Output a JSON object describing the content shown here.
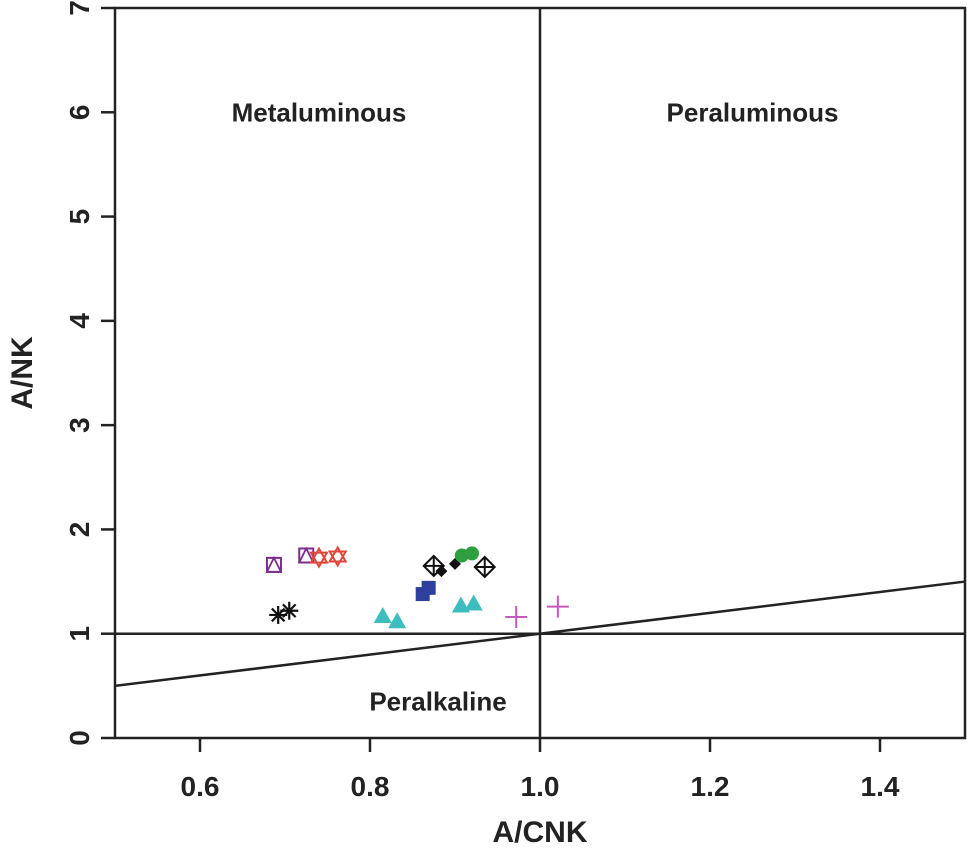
{
  "chart_data": {
    "type": "scatter",
    "title": "",
    "xlabel": "A/CNK",
    "ylabel": "A/NK",
    "xlim": [
      0.5,
      1.5
    ],
    "ylim": [
      0,
      7
    ],
    "x_ticks": [
      {
        "value": 0.6,
        "label": "0.6"
      },
      {
        "value": 0.8,
        "label": "0.8"
      },
      {
        "value": 1.0,
        "label": "1.0"
      },
      {
        "value": 1.2,
        "label": "1.2"
      },
      {
        "value": 1.4,
        "label": "1.4"
      }
    ],
    "y_ticks": [
      {
        "value": 0,
        "label": "0"
      },
      {
        "value": 1,
        "label": "1"
      },
      {
        "value": 2,
        "label": "2"
      },
      {
        "value": 3,
        "label": "3"
      },
      {
        "value": 4,
        "label": "4"
      },
      {
        "value": 5,
        "label": "5"
      },
      {
        "value": 6,
        "label": "6"
      },
      {
        "value": 7,
        "label": "7"
      }
    ],
    "grid": false,
    "legend": "none",
    "regions": [
      {
        "label": "Metaluminous",
        "x": 0.74,
        "y": 6.0
      },
      {
        "label": "Peraluminous",
        "x": 1.25,
        "y": 6.0
      },
      {
        "label": "Peralkaline",
        "x": 0.88,
        "y": 0.35
      }
    ],
    "reference_lines": [
      {
        "type": "vertical",
        "x": 1.0
      },
      {
        "type": "horizontal",
        "y": 1.0
      },
      {
        "type": "line",
        "points": [
          [
            0.5,
            0.5
          ],
          [
            1.5,
            1.5
          ]
        ]
      }
    ],
    "series": [
      {
        "marker": "square-triangle",
        "color": "#7b2d8e",
        "points": [
          [
            0.687,
            1.66
          ],
          [
            0.725,
            1.75
          ]
        ]
      },
      {
        "marker": "star-of-david",
        "color": "#e0453a",
        "points": [
          [
            0.74,
            1.73
          ],
          [
            0.762,
            1.74
          ]
        ]
      },
      {
        "marker": "asterisk",
        "color": "#111111",
        "points": [
          [
            0.692,
            1.18
          ],
          [
            0.705,
            1.22
          ]
        ]
      },
      {
        "marker": "triangle-filled",
        "color": "#3dbdbd",
        "points": [
          [
            0.815,
            1.17
          ],
          [
            0.832,
            1.12
          ],
          [
            0.907,
            1.27
          ],
          [
            0.922,
            1.29
          ]
        ]
      },
      {
        "marker": "square-filled",
        "color": "#2e3f9e",
        "points": [
          [
            0.862,
            1.38
          ],
          [
            0.869,
            1.44
          ]
        ]
      },
      {
        "marker": "diamond-plus",
        "color": "#111111",
        "points": [
          [
            0.875,
            1.65
          ],
          [
            0.935,
            1.64
          ]
        ]
      },
      {
        "marker": "diamond-filled",
        "color": "#111111",
        "points": [
          [
            0.884,
            1.6
          ],
          [
            0.9,
            1.67
          ]
        ]
      },
      {
        "marker": "circle-filled",
        "color": "#2e9e3e",
        "points": [
          [
            0.908,
            1.75
          ],
          [
            0.92,
            1.77
          ]
        ]
      },
      {
        "marker": "plus",
        "color": "#c35bbf",
        "points": [
          [
            0.972,
            1.16
          ],
          [
            1.021,
            1.26
          ]
        ]
      }
    ]
  }
}
